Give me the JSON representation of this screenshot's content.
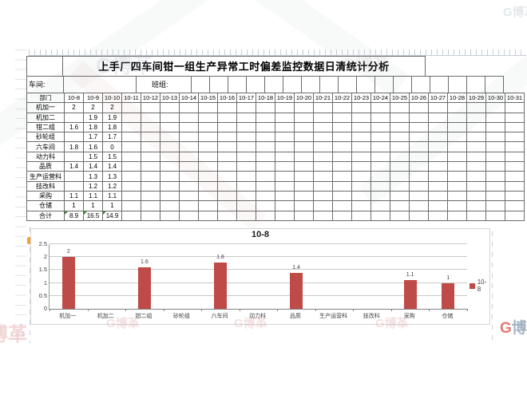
{
  "title": "上手厂四车间钳一组生产异常工时偏差监控数据日清统计分析",
  "meta": {
    "workshop_label": "车间:",
    "team_label": "班组:"
  },
  "table": {
    "corner_header": "部门",
    "date_columns": [
      "10-8",
      "10-9",
      "10-10",
      "10-11",
      "10-12",
      "10-13",
      "10-14",
      "10-15",
      "10-16",
      "10-17",
      "10-18",
      "10-19",
      "10-20",
      "10-21",
      "10-22",
      "10-23",
      "10-24",
      "10-25",
      "10-26",
      "10-27",
      "10-28",
      "10-29",
      "10-30",
      "10-31"
    ],
    "rows": [
      {
        "label": "机加一",
        "values": [
          "2",
          "2",
          "2"
        ]
      },
      {
        "label": "机加二",
        "values": [
          "",
          "1.9",
          "1.9"
        ]
      },
      {
        "label": "钳二组",
        "values": [
          "1.6",
          "1.8",
          "1.8"
        ]
      },
      {
        "label": "砂轮组",
        "values": [
          "",
          "1.7",
          "1.7"
        ]
      },
      {
        "label": "六车间",
        "values": [
          "1.8",
          "1.6",
          "0"
        ]
      },
      {
        "label": "动力科",
        "values": [
          "",
          "1.5",
          "1.5"
        ]
      },
      {
        "label": "品质",
        "values": [
          "1.4",
          "1.4",
          "1.4"
        ]
      },
      {
        "label": "生产运营科",
        "values": [
          "",
          "1.3",
          "1.3"
        ]
      },
      {
        "label": "技改科",
        "values": [
          "",
          "1.2",
          "1.2"
        ]
      },
      {
        "label": "采购",
        "values": [
          "1.1",
          "1.1",
          "1.1"
        ]
      },
      {
        "label": "仓储",
        "values": [
          "1",
          "1",
          "1"
        ]
      },
      {
        "label": "合计",
        "values": [
          "8.9",
          "16.5",
          "14.9"
        ],
        "cls": "total-row"
      }
    ]
  },
  "chart_data": {
    "type": "bar",
    "title": "10-8",
    "categories": [
      "机加一",
      "机加二",
      "钳二组",
      "砂轮组",
      "六车间",
      "动力科",
      "品质",
      "生产运营科",
      "技改科",
      "采购",
      "仓储"
    ],
    "series": [
      {
        "name": "10-8",
        "values": [
          2,
          null,
          1.6,
          null,
          1.8,
          null,
          1.4,
          null,
          null,
          1.1,
          1
        ]
      }
    ],
    "xlabel": "",
    "ylabel": "",
    "ylim": [
      0,
      2.5
    ],
    "ytick_step": 0.5,
    "grid": true,
    "legend_position": "right",
    "bar_color": "#BE4B48",
    "data_labels": true
  },
  "watermark": {
    "logo_letter": "G",
    "brand": "博革"
  }
}
